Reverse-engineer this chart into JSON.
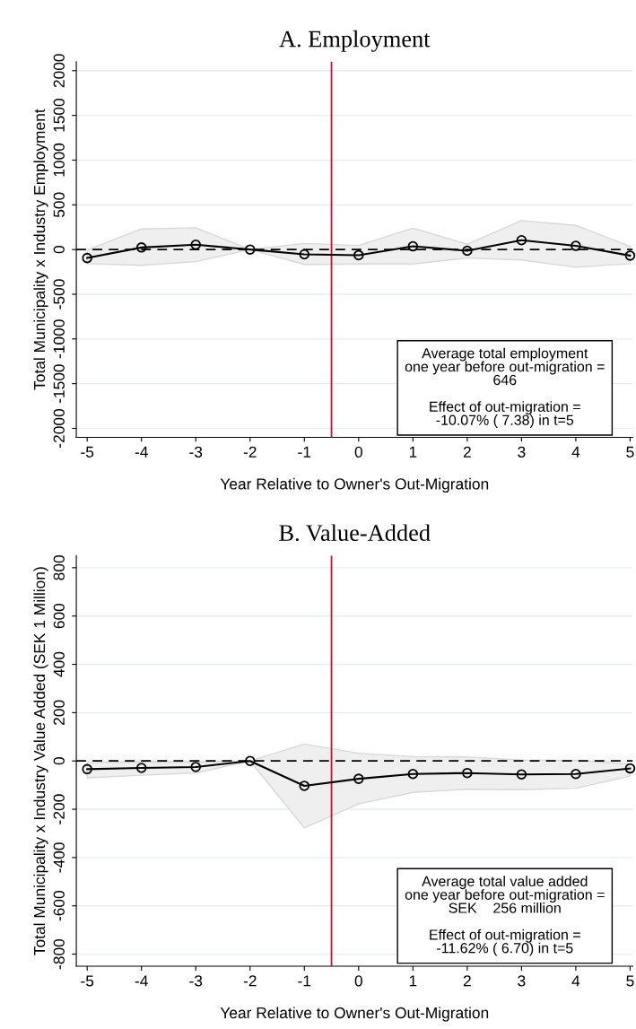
{
  "chart_data": [
    {
      "type": "line",
      "title": "A. Employment",
      "xlabel": "Year Relative to Owner's Out-Migration",
      "ylabel": "Total Municipality x Industry Employment",
      "x": [
        -5,
        -4,
        -3,
        -2,
        -1,
        0,
        1,
        2,
        3,
        4,
        5
      ],
      "series": [
        {
          "color": "#000000",
          "values": [
            -95,
            23,
            54,
            0,
            -54,
            -63,
            36,
            -14,
            104,
            41,
            -68
          ],
          "lower": [
            -158,
            -176,
            -135,
            0,
            -167,
            -162,
            -162,
            -95,
            -117,
            -198,
            -158
          ],
          "upper": [
            -5,
            230,
            243,
            0,
            68,
            45,
            239,
            59,
            324,
            270,
            36
          ]
        }
      ],
      "marker": "circle",
      "line_style": "solid",
      "xlim": [
        -5.2,
        5.05
      ],
      "xticks": [
        -5,
        -4,
        -3,
        -2,
        -1,
        0,
        1,
        2,
        3,
        4,
        5
      ],
      "ylim": [
        -2100,
        2100
      ],
      "yticks": [
        -2000,
        -1500,
        -1000,
        -500,
        0,
        500,
        1000,
        1500,
        2000
      ],
      "grid": "y",
      "ref_lines": [
        {
          "axis": "x",
          "value": -0.5,
          "color": "#c0143c",
          "line_style": "solid"
        },
        {
          "axis": "y",
          "value": 0,
          "color": "#000000",
          "line_style": "dashed"
        }
      ],
      "annotations": [
        "Average total employment\none year before out-migration =\n646\n\nEffect of out-migration =\n-10.07% ( 7.38) in t=5"
      ]
    },
    {
      "type": "line",
      "title": "B. Value-Added",
      "xlabel": "Year Relative to Owner's Out-Migration",
      "ylabel": "Total Municipality x Industry Value Added (SEK 1 Million)",
      "x": [
        -5,
        -4,
        -3,
        -2,
        -1,
        0,
        1,
        2,
        3,
        4,
        5
      ],
      "series": [
        {
          "color": "#000000",
          "values": [
            -34,
            -29,
            -25,
            0,
            -103,
            -74,
            -54,
            -50,
            -56,
            -54,
            -31
          ],
          "lower": [
            -70,
            -59,
            -50,
            0,
            -277,
            -178,
            -130,
            -117,
            -119,
            -113,
            -63
          ],
          "upper": [
            -7,
            -5,
            -5,
            0,
            70,
            32,
            18,
            16,
            4,
            2,
            -13
          ]
        }
      ],
      "marker": "circle",
      "line_style": "solid",
      "xlim": [
        -5.2,
        5.05
      ],
      "xticks": [
        -5,
        -4,
        -3,
        -2,
        -1,
        0,
        1,
        2,
        3,
        4,
        5
      ],
      "ylim": [
        -850,
        850
      ],
      "yticks": [
        -800,
        -600,
        -400,
        -200,
        0,
        200,
        400,
        600,
        800
      ],
      "grid": "y",
      "ref_lines": [
        {
          "axis": "x",
          "value": -0.5,
          "color": "#c0143c",
          "line_style": "solid"
        },
        {
          "axis": "y",
          "value": 0,
          "color": "#000000",
          "line_style": "dashed"
        }
      ],
      "annotations": [
        "Average total value added\none year before out-migration =\nSEK    256 million\n\nEffect of out-migration =\n-11.62% ( 6.70) in t=5"
      ]
    }
  ]
}
